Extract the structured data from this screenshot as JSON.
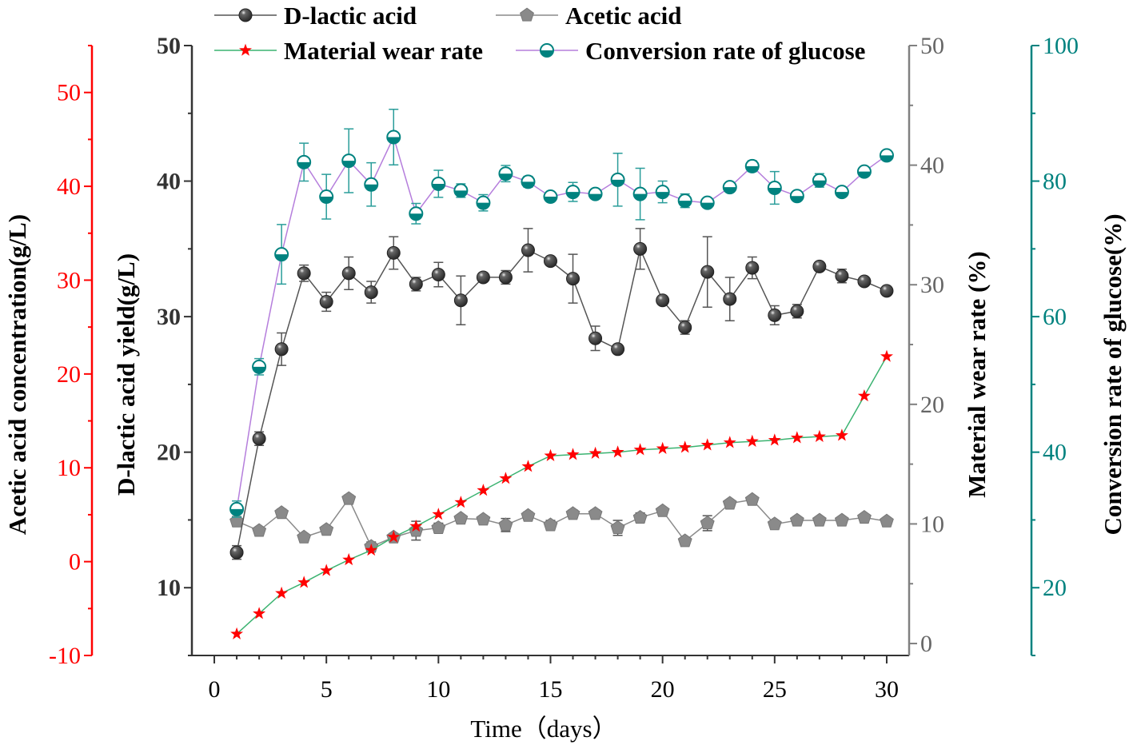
{
  "chart_data": {
    "type": "line",
    "title": "",
    "xlabel": "Time（days）",
    "xlim": [
      -1,
      31
    ],
    "xticks": [
      0,
      5,
      10,
      15,
      20,
      25,
      30
    ],
    "grid": false,
    "legend_position": "top",
    "axes": [
      {
        "id": "dlactic",
        "label": "D-lactic acid yield(g/L)",
        "ylim": [
          5,
          50
        ],
        "ticks": [
          10,
          20,
          30,
          40,
          50
        ],
        "color": "#333333",
        "side": "left-inner"
      },
      {
        "id": "acetic",
        "label": "Acetic acid concentration(g/L)",
        "ylim": [
          -10,
          55
        ],
        "ticks": [
          -10,
          0,
          10,
          20,
          30,
          40,
          50
        ],
        "color": "#ff0000",
        "side": "left-outer"
      },
      {
        "id": "wear",
        "label": "Material wear rate (%)",
        "ylim": [
          -1,
          50
        ],
        "ticks": [
          0,
          10,
          20,
          30,
          40,
          50
        ],
        "color": "#808080",
        "side": "right-inner"
      },
      {
        "id": "conv",
        "label": "Conversion rate of glucose(%)",
        "ylim": [
          10,
          100
        ],
        "ticks": [
          20,
          40,
          60,
          80,
          100
        ],
        "color": "#00827f",
        "side": "right-outer"
      }
    ],
    "x": [
      1,
      2,
      3,
      4,
      5,
      6,
      7,
      8,
      9,
      10,
      11,
      12,
      13,
      14,
      15,
      16,
      17,
      18,
      19,
      20,
      21,
      22,
      23,
      24,
      25,
      26,
      27,
      28,
      29,
      30
    ],
    "series": [
      {
        "name": "D-lactic acid",
        "axis": "dlactic",
        "marker": "sphere",
        "line_color": "#555555",
        "marker_color": "#444444",
        "values": [
          12.6,
          21.0,
          27.6,
          33.2,
          31.1,
          33.2,
          31.8,
          34.7,
          32.4,
          33.1,
          31.2,
          32.9,
          32.9,
          34.9,
          34.1,
          32.8,
          28.4,
          27.6,
          35.0,
          31.2,
          29.2,
          33.3,
          31.3,
          33.6,
          30.1,
          30.4,
          33.7,
          33.0,
          32.6,
          31.9
        ],
        "errors": [
          0.5,
          0.5,
          1.2,
          0.6,
          0.7,
          1.2,
          0.8,
          1.2,
          0.5,
          0.9,
          1.8,
          0.3,
          0.5,
          1.6,
          0.3,
          1.8,
          0.9,
          0.3,
          1.5,
          0.3,
          0.5,
          2.6,
          1.6,
          0.8,
          0.7,
          0.5,
          0.3,
          0.5,
          0.3,
          0.3
        ]
      },
      {
        "name": "Acetic acid",
        "axis": "acetic",
        "marker": "pentagon",
        "line_color": "#8a8a8a",
        "marker_color": "#8a8a8a",
        "values": [
          4.3,
          3.3,
          5.2,
          2.6,
          3.4,
          6.7,
          1.6,
          2.6,
          3.3,
          3.6,
          4.6,
          4.5,
          3.9,
          4.9,
          3.9,
          5.1,
          5.1,
          3.6,
          4.7,
          5.4,
          2.2,
          4.1,
          6.2,
          6.6,
          4.0,
          4.4,
          4.4,
          4.4,
          4.7,
          4.3
        ],
        "errors": [
          0.5,
          0.3,
          0.4,
          0.3,
          0.3,
          0.4,
          0.5,
          0.4,
          1.0,
          0.5,
          0.3,
          0.3,
          0.7,
          0.4,
          0.5,
          0.4,
          0.4,
          0.8,
          0.5,
          0.3,
          0.3,
          0.8,
          0.3,
          0.3,
          0.3,
          0.3,
          0.3,
          0.3,
          0.3,
          0.3
        ]
      },
      {
        "name": "Material wear rate",
        "axis": "wear",
        "marker": "star",
        "line_color": "#3cb371",
        "marker_color": "#ff0000",
        "values": [
          0.8,
          2.5,
          4.2,
          5.1,
          6.1,
          7.0,
          7.8,
          8.9,
          9.8,
          10.8,
          11.8,
          12.8,
          13.8,
          14.8,
          15.7,
          15.8,
          15.9,
          16.0,
          16.2,
          16.3,
          16.4,
          16.6,
          16.8,
          16.9,
          17.0,
          17.2,
          17.3,
          17.4,
          20.7,
          24.0
        ]
      },
      {
        "name": "Conversion rate of glucose",
        "axis": "conv",
        "marker": "half-circle",
        "line_color": "#b57edc",
        "marker_color": "#00827f",
        "values": [
          31.6,
          52.6,
          69.2,
          82.8,
          77.7,
          83.0,
          79.5,
          86.5,
          75.2,
          79.6,
          78.6,
          76.8,
          81.1,
          79.9,
          77.7,
          78.4,
          78.1,
          80.2,
          78.1,
          78.4,
          77.1,
          76.8,
          79.1,
          82.2,
          79.0,
          77.8,
          80.1,
          78.4,
          81.4,
          83.8
        ],
        "errors": [
          1.2,
          1.2,
          4.4,
          2.8,
          3.3,
          4.7,
          3.2,
          4.1,
          1.5,
          2.0,
          1.0,
          1.2,
          1.2,
          0.8,
          0.5,
          1.4,
          0.6,
          3.9,
          3.8,
          1.6,
          1.0,
          0.5,
          0.6,
          0.8,
          2.4,
          0.5,
          1.0,
          0.5,
          0.5,
          0.5
        ]
      }
    ]
  }
}
